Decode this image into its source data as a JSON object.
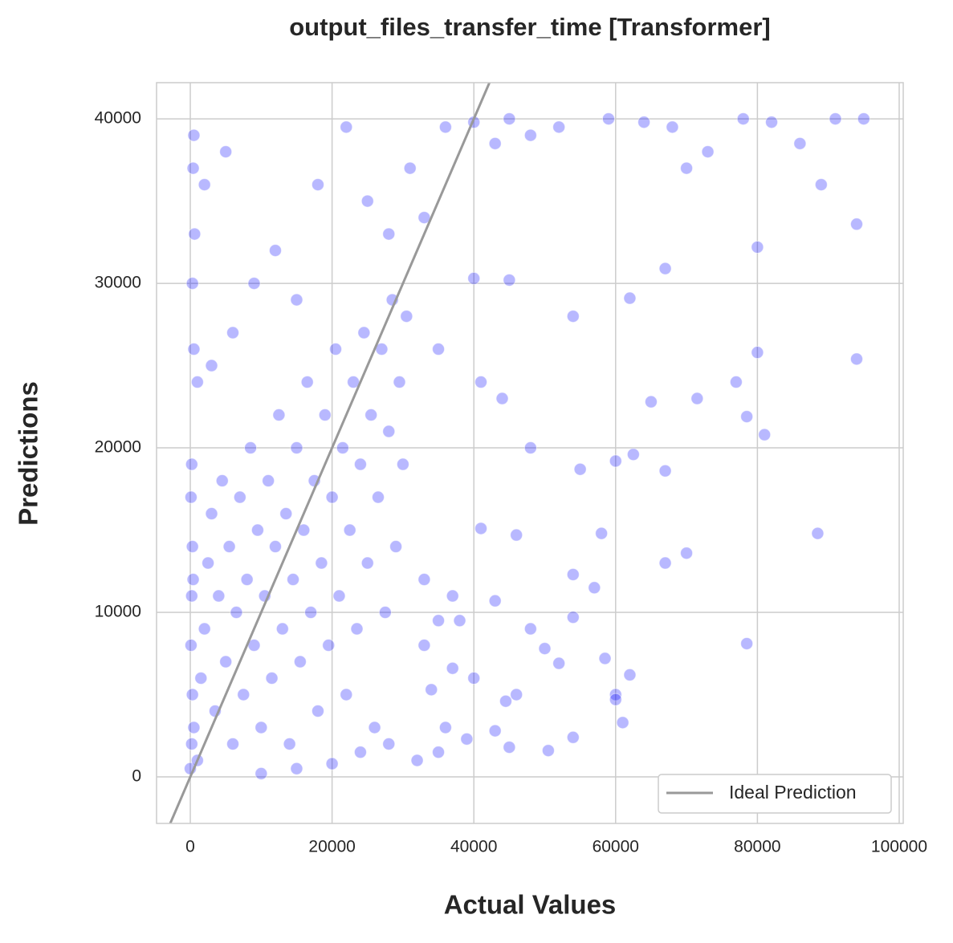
{
  "chart_data": {
    "type": "scatter",
    "title": "output_files_transfer_time [Transformer]",
    "x_label": "Actual Values",
    "y_label": "Predictions",
    "color": "#0000ff",
    "x": [
      0,
      200,
      300,
      100,
      200,
      300,
      100,
      200,
      400,
      500,
      1000,
      1500,
      2000,
      2500,
      3000,
      3500,
      4000,
      4500,
      5000,
      5500,
      6000,
      6500,
      7000,
      7500,
      8000,
      8500,
      9000,
      9500,
      10000,
      10500,
      11000,
      11500,
      12000,
      12500,
      13000,
      13500,
      14000,
      14500,
      15000,
      15500,
      16000,
      16500,
      17000,
      17500,
      18000,
      18500,
      19000,
      19500,
      20000,
      20500,
      21000,
      21500,
      22000,
      22500,
      23000,
      23500,
      24000,
      24500,
      25000,
      25500,
      26000,
      26500,
      27000,
      27500,
      28000,
      28500,
      29000,
      29500,
      30000,
      30500,
      1000,
      500,
      300,
      600,
      400,
      500,
      2000,
      5000,
      3000,
      6000,
      9000,
      12000,
      15000,
      18000,
      22000,
      25000,
      28000,
      31000,
      33000,
      36000,
      40000,
      43000,
      45000,
      48000,
      52000,
      59000,
      64000,
      68000,
      70000,
      73000,
      78000,
      82000,
      86000,
      91000,
      95000,
      89000,
      94000,
      80000,
      67000,
      62000,
      54000,
      45000,
      40000,
      35000,
      41000,
      44000,
      48000,
      55000,
      60000,
      62500,
      67000,
      80000,
      94000,
      77000,
      71500,
      65000,
      81000,
      78500,
      88500,
      70000,
      67000,
      58000,
      54000,
      46000,
      41000,
      33000,
      37000,
      43000,
      48000,
      54000,
      50000,
      57000,
      58500,
      78500,
      60000,
      61000,
      62000,
      44500,
      46000,
      50500,
      54000,
      43000,
      39000,
      35000,
      32000,
      28000,
      24000,
      20000,
      15000,
      10000,
      60000,
      52000,
      45000,
      40000,
      37000,
      34000,
      35000,
      38000,
      33000,
      36000
    ],
    "y": [
      500,
      2000,
      5000,
      8000,
      11000,
      14000,
      17000,
      19000,
      12000,
      3000,
      1000,
      6000,
      9000,
      13000,
      16000,
      4000,
      11000,
      18000,
      7000,
      14000,
      2000,
      10000,
      17000,
      5000,
      12000,
      20000,
      8000,
      15000,
      3000,
      11000,
      18000,
      6000,
      14000,
      22000,
      9000,
      16000,
      2000,
      12000,
      20000,
      7000,
      15000,
      24000,
      10000,
      18000,
      4000,
      13000,
      22000,
      8000,
      17000,
      26000,
      11000,
      20000,
      5000,
      15000,
      24000,
      9000,
      19000,
      27000,
      13000,
      22000,
      3000,
      17000,
      26000,
      10000,
      21000,
      29000,
      14000,
      24000,
      19000,
      28000,
      24000,
      26000,
      30000,
      33000,
      37000,
      39000,
      36000,
      38000,
      25000,
      27000,
      30000,
      32000,
      29000,
      36000,
      39500,
      35000,
      33000,
      37000,
      34000,
      39500,
      39800,
      38500,
      40000,
      39000,
      39500,
      40000,
      39800,
      39500,
      37000,
      38000,
      40000,
      39800,
      38500,
      40000,
      40000,
      36000,
      33600,
      32200,
      30900,
      29100,
      28000,
      30200,
      30300,
      26000,
      24000,
      23000,
      20000,
      18700,
      19200,
      19600,
      18600,
      25800,
      25400,
      24000,
      23000,
      22800,
      20800,
      21900,
      14800,
      13600,
      13000,
      14800,
      12300,
      14700,
      15100,
      12000,
      11000,
      10700,
      9000,
      9700,
      7800,
      11500,
      7200,
      8100,
      5000,
      3300,
      6200,
      4600,
      5000,
      1600,
      2400,
      2800,
      2300,
      1500,
      1000,
      2000,
      1500,
      800,
      500,
      200,
      4700,
      6900,
      1800,
      6000,
      6600,
      5300,
      9500,
      9500,
      8000,
      3000
    ],
    "ideal_line": {
      "name": "Ideal Prediction",
      "color": "#999999"
    },
    "xlim": [
      -4760,
      100570
    ],
    "ylim": [
      -2830,
      42200
    ],
    "xticks": [
      0,
      20000,
      40000,
      60000,
      80000,
      100000
    ],
    "yticks": [
      0,
      10000,
      20000,
      30000,
      40000
    ],
    "grid": true,
    "legend_position": "lower right"
  }
}
